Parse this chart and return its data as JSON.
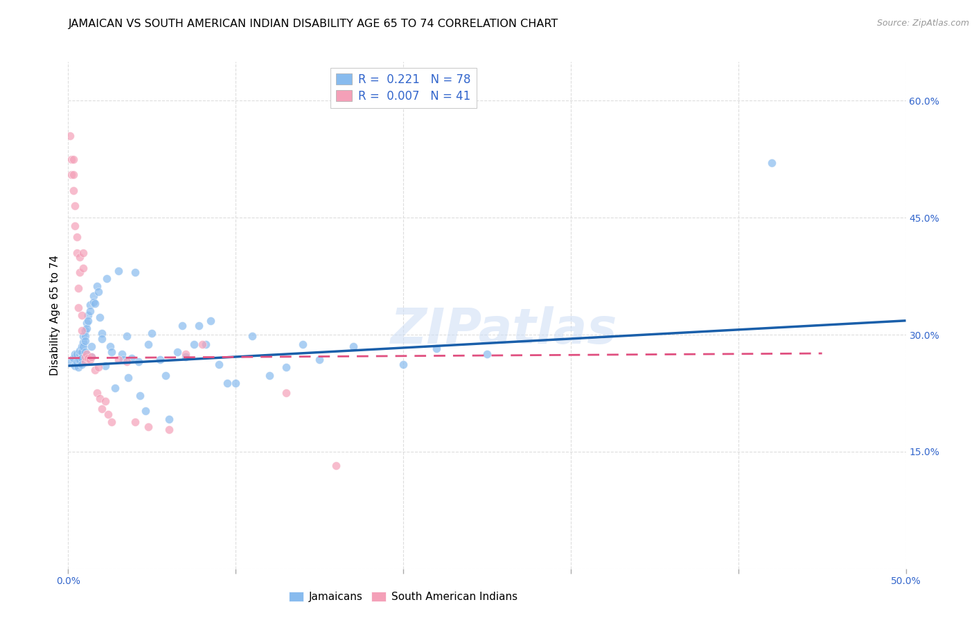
{
  "title": "JAMAICAN VS SOUTH AMERICAN INDIAN DISABILITY AGE 65 TO 74 CORRELATION CHART",
  "source": "Source: ZipAtlas.com",
  "ylabel": "Disability Age 65 to 74",
  "xlim": [
    0.0,
    0.5
  ],
  "ylim": [
    0.0,
    0.65
  ],
  "xtick_positions": [
    0.0,
    0.1,
    0.2,
    0.3,
    0.4,
    0.5
  ],
  "xticklabels": [
    "0.0%",
    "",
    "",
    "",
    "",
    "50.0%"
  ],
  "ytick_positions": [
    0.0,
    0.15,
    0.3,
    0.45,
    0.6
  ],
  "yticklabels": [
    "",
    "15.0%",
    "30.0%",
    "45.0%",
    "60.0%"
  ],
  "jamaican_color": "#88bbee",
  "sa_indian_color": "#f4a0b8",
  "trendline_jamaican_color": "#1a5faa",
  "trendline_sa_color": "#e05080",
  "watermark": "ZIPatlas",
  "background_color": "#ffffff",
  "grid_color": "#dddddd",
  "blue_label_color": "#3366cc",
  "jamaican_x": [
    0.002,
    0.003,
    0.004,
    0.004,
    0.005,
    0.005,
    0.006,
    0.006,
    0.007,
    0.007,
    0.007,
    0.008,
    0.008,
    0.008,
    0.008,
    0.009,
    0.009,
    0.009,
    0.01,
    0.01,
    0.01,
    0.01,
    0.011,
    0.011,
    0.012,
    0.012,
    0.013,
    0.013,
    0.014,
    0.014,
    0.015,
    0.015,
    0.016,
    0.017,
    0.018,
    0.019,
    0.02,
    0.02,
    0.022,
    0.023,
    0.025,
    0.026,
    0.028,
    0.03,
    0.032,
    0.033,
    0.035,
    0.036,
    0.038,
    0.04,
    0.042,
    0.043,
    0.046,
    0.048,
    0.05,
    0.055,
    0.058,
    0.06,
    0.065,
    0.068,
    0.07,
    0.075,
    0.078,
    0.082,
    0.085,
    0.09,
    0.095,
    0.1,
    0.11,
    0.12,
    0.13,
    0.14,
    0.15,
    0.17,
    0.2,
    0.22,
    0.25,
    0.42
  ],
  "jamaican_y": [
    0.265,
    0.27,
    0.275,
    0.26,
    0.275,
    0.265,
    0.258,
    0.268,
    0.275,
    0.268,
    0.28,
    0.285,
    0.278,
    0.27,
    0.262,
    0.29,
    0.298,
    0.285,
    0.305,
    0.298,
    0.292,
    0.278,
    0.315,
    0.308,
    0.325,
    0.318,
    0.338,
    0.33,
    0.285,
    0.272,
    0.35,
    0.342,
    0.34,
    0.362,
    0.355,
    0.322,
    0.302,
    0.295,
    0.26,
    0.372,
    0.285,
    0.278,
    0.232,
    0.382,
    0.275,
    0.268,
    0.298,
    0.245,
    0.27,
    0.38,
    0.265,
    0.222,
    0.202,
    0.288,
    0.302,
    0.268,
    0.248,
    0.192,
    0.278,
    0.312,
    0.272,
    0.288,
    0.312,
    0.288,
    0.318,
    0.262,
    0.238,
    0.238,
    0.298,
    0.248,
    0.258,
    0.288,
    0.268,
    0.285,
    0.262,
    0.282,
    0.275,
    0.52
  ],
  "sa_indian_x": [
    0.001,
    0.002,
    0.002,
    0.003,
    0.003,
    0.003,
    0.004,
    0.004,
    0.005,
    0.005,
    0.006,
    0.006,
    0.007,
    0.007,
    0.008,
    0.008,
    0.009,
    0.009,
    0.01,
    0.01,
    0.011,
    0.012,
    0.013,
    0.014,
    0.016,
    0.017,
    0.018,
    0.019,
    0.02,
    0.022,
    0.024,
    0.026,
    0.03,
    0.035,
    0.04,
    0.048,
    0.06,
    0.07,
    0.08,
    0.13,
    0.16
  ],
  "sa_indian_y": [
    0.555,
    0.525,
    0.505,
    0.525,
    0.505,
    0.485,
    0.465,
    0.44,
    0.425,
    0.405,
    0.36,
    0.335,
    0.4,
    0.38,
    0.325,
    0.305,
    0.405,
    0.385,
    0.265,
    0.272,
    0.275,
    0.27,
    0.268,
    0.272,
    0.255,
    0.225,
    0.258,
    0.218,
    0.205,
    0.215,
    0.198,
    0.188,
    0.268,
    0.265,
    0.188,
    0.182,
    0.178,
    0.275,
    0.288,
    0.225,
    0.132
  ],
  "jamaican_trend_x": [
    0.0,
    0.5
  ],
  "jamaican_trend_y": [
    0.26,
    0.318
  ],
  "sa_trend_x": [
    0.0,
    0.45
  ],
  "sa_trend_y": [
    0.27,
    0.276
  ],
  "marker_size": 75,
  "marker_alpha": 0.7,
  "legend_fontsize": 12,
  "title_fontsize": 11.5,
  "axis_label_fontsize": 11,
  "tick_fontsize": 10,
  "tick_label_color": "#3366cc"
}
